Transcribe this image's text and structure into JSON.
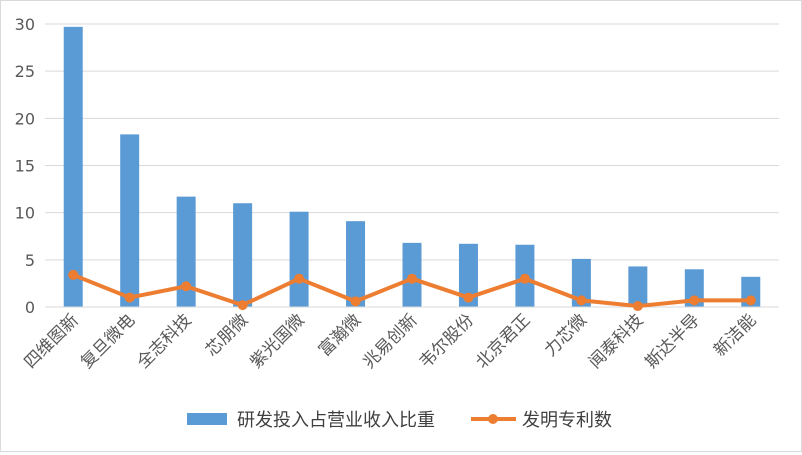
{
  "chart_data": {
    "type": "bar",
    "title": "",
    "xlabel": "",
    "ylabel": "",
    "ylim": [
      0,
      30
    ],
    "yticks": [
      0,
      5,
      10,
      15,
      20,
      25,
      30
    ],
    "grid": "horizontal",
    "legend_position": "bottom",
    "categories": [
      "四维图新",
      "复旦微电",
      "全志科技",
      "芯朋微",
      "紫光国微",
      "富瀚微",
      "兆易创新",
      "韦尔股份",
      "北京君正",
      "力芯微",
      "闻泰科技",
      "斯达半导",
      "新洁能"
    ],
    "series": [
      {
        "name": "研发投入占营业收入比重",
        "type": "bar",
        "color": "#5b9bd5",
        "values": [
          29.7,
          18.3,
          11.7,
          11.0,
          10.1,
          9.1,
          6.8,
          6.7,
          6.6,
          5.1,
          4.3,
          4.0,
          3.2
        ]
      },
      {
        "name": "发明专利数",
        "type": "line",
        "color": "#ed7d31",
        "values": [
          3.4,
          1.0,
          2.2,
          0.2,
          3.0,
          0.6,
          3.0,
          1.0,
          3.0,
          0.7,
          0.1,
          0.7,
          0.7
        ]
      }
    ]
  }
}
